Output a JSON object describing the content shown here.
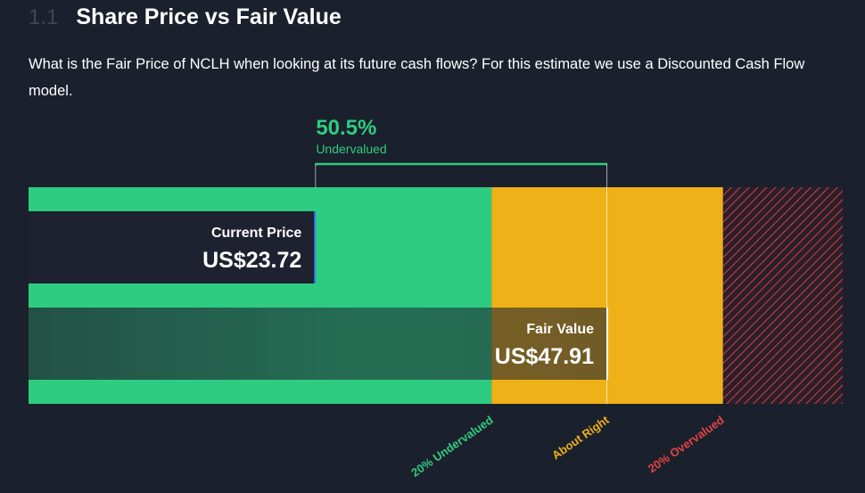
{
  "section": {
    "number": "1.1",
    "title": "Share Price vs Fair Value"
  },
  "description": "What is the Fair Price of NCLH when looking at its future cash flows? For this estimate we use a Discounted Cash Flow model.",
  "colors": {
    "background": "#1b202d",
    "undervalued": "#2ecc80",
    "about_right": "#eeb118",
    "overvalued": "#e04545",
    "bar_dark": "#1e2230"
  },
  "chart_data": {
    "type": "bar",
    "orientation": "horizontal",
    "summary": {
      "percent": "50.5%",
      "label": "Undervalued"
    },
    "bars": [
      {
        "name": "Current Price",
        "display": "US$23.72",
        "value": 23.72
      },
      {
        "name": "Fair Value",
        "display": "US$47.91",
        "value": 47.91
      }
    ],
    "zones": [
      {
        "label": "20% Undervalued",
        "color": "#2ecc80"
      },
      {
        "label": "About Right",
        "color": "#eeb118"
      },
      {
        "label": "20% Overvalued",
        "color": "#e04545"
      }
    ]
  }
}
